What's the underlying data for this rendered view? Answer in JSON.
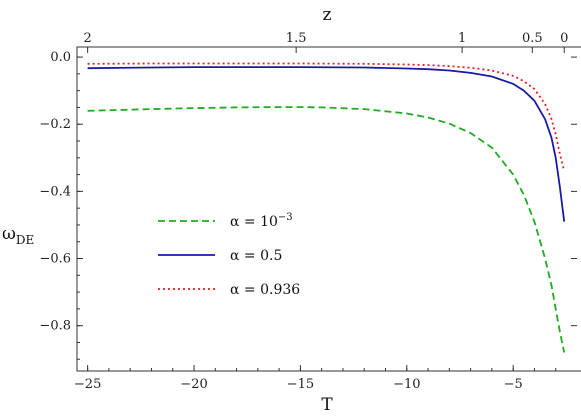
{
  "chart_data": {
    "type": "line",
    "xlabel": "T",
    "ylabel": "ω",
    "ylabel_sub": "DE",
    "top_axis_label": "z",
    "xlim": [
      -25.5,
      -2.0
    ],
    "ylim": [
      -0.935,
      0.03
    ],
    "x_ticks": [
      -25,
      -20,
      -15,
      -10,
      -5
    ],
    "x_tick_labels": [
      "-25",
      "-20",
      "-15",
      "-10",
      "-5"
    ],
    "y_ticks": [
      0.0,
      -0.2,
      -0.4,
      -0.6,
      -0.8
    ],
    "y_tick_labels": [
      "0.0",
      "-0.2",
      "-0.4",
      "-0.6",
      "-0.8"
    ],
    "top_ticks": [
      {
        "label": "2",
        "T": -25.0
      },
      {
        "label": "1.5",
        "T": -15.2
      },
      {
        "label": "1",
        "T": -7.4
      },
      {
        "label": "0.5",
        "T": -4.1
      },
      {
        "label": "0",
        "T": -2.6
      }
    ],
    "grid": false,
    "legend_position": "lower-left",
    "series": [
      {
        "name": "α = 10",
        "name_sup": "−3",
        "color": "#22aa22",
        "style": "dashed",
        "x": [
          -25,
          -22,
          -20,
          -18,
          -16,
          -15,
          -14,
          -12,
          -10,
          -9,
          -8,
          -7,
          -6,
          -5,
          -4.5,
          -4,
          -3.5,
          -3.2,
          -3.0,
          -2.8,
          -2.6
        ],
        "y": [
          -0.16,
          -0.155,
          -0.152,
          -0.15,
          -0.149,
          -0.149,
          -0.15,
          -0.155,
          -0.168,
          -0.18,
          -0.198,
          -0.226,
          -0.27,
          -0.35,
          -0.41,
          -0.49,
          -0.6,
          -0.68,
          -0.75,
          -0.82,
          -0.88
        ]
      },
      {
        "name": "α = 0.5",
        "color": "#1a1aa6",
        "style": "solid",
        "x": [
          -25,
          -22,
          -20,
          -18,
          -15,
          -12,
          -10,
          -9,
          -8,
          -7,
          -6,
          -5,
          -4.5,
          -4,
          -3.5,
          -3.2,
          -3.0,
          -2.8,
          -2.6
        ],
        "y": [
          -0.033,
          -0.031,
          -0.03,
          -0.03,
          -0.03,
          -0.031,
          -0.034,
          -0.036,
          -0.04,
          -0.047,
          -0.058,
          -0.08,
          -0.1,
          -0.13,
          -0.185,
          -0.24,
          -0.3,
          -0.39,
          -0.49
        ]
      },
      {
        "name": "α = 0.936",
        "color": "#e02020",
        "style": "dotted",
        "x": [
          -25,
          -22,
          -20,
          -18,
          -15,
          -12,
          -10,
          -9,
          -8,
          -7,
          -6,
          -5,
          -4.5,
          -4,
          -3.5,
          -3.2,
          -3.0,
          -2.8,
          -2.6
        ],
        "y": [
          -0.02,
          -0.019,
          -0.019,
          -0.019,
          -0.019,
          -0.02,
          -0.022,
          -0.024,
          -0.027,
          -0.032,
          -0.04,
          -0.056,
          -0.072,
          -0.095,
          -0.14,
          -0.185,
          -0.23,
          -0.29,
          -0.34
        ]
      }
    ]
  }
}
